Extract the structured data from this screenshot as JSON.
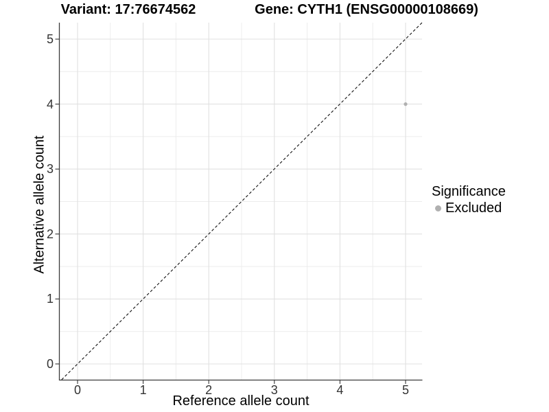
{
  "titles": {
    "variant_title": "Variant: 17:76674562",
    "gene_title": "Gene: CYTH1 (ENSG00000108669)"
  },
  "axes": {
    "x": {
      "label": "Reference allele count",
      "tick_labels": [
        "0",
        "1",
        "2",
        "3",
        "4",
        "5"
      ]
    },
    "y": {
      "label": "Alternative allele count",
      "tick_labels": [
        "0",
        "1",
        "2",
        "3",
        "4",
        "5"
      ]
    }
  },
  "legend": {
    "title": "Significance",
    "items": [
      {
        "label": "Excluded",
        "marker_color": "#b0b0b0"
      }
    ]
  },
  "colors": {
    "background": "#ffffff",
    "grid_major": "#e1e1e1",
    "grid_minor": "#ececec",
    "axis_line": "#3a3a3a",
    "tick_mark": "#333333",
    "tick_label": "#333333",
    "point": "#b0b0b0",
    "reference_line": "#111111"
  },
  "chart_data": {
    "type": "scatter",
    "title_left": "Variant: 17:76674562",
    "title_right": "Gene: CYTH1 (ENSG00000108669)",
    "xlabel": "Reference allele count",
    "ylabel": "Alternative allele count",
    "xlim": [
      -0.25,
      5.25
    ],
    "ylim": [
      -0.25,
      5.25
    ],
    "x_ticks": [
      0,
      1,
      2,
      3,
      4,
      5
    ],
    "y_ticks": [
      0,
      1,
      2,
      3,
      4,
      5
    ],
    "grid": "major and minor gridlines every 0.5 units",
    "legend_position": "right",
    "series": [
      {
        "name": "Excluded",
        "color": "#b0b0b0",
        "points": [
          {
            "x": 5,
            "y": 4
          }
        ]
      }
    ],
    "reference_line": {
      "equation": "y = x",
      "style": "dashed",
      "color": "#111111"
    }
  }
}
